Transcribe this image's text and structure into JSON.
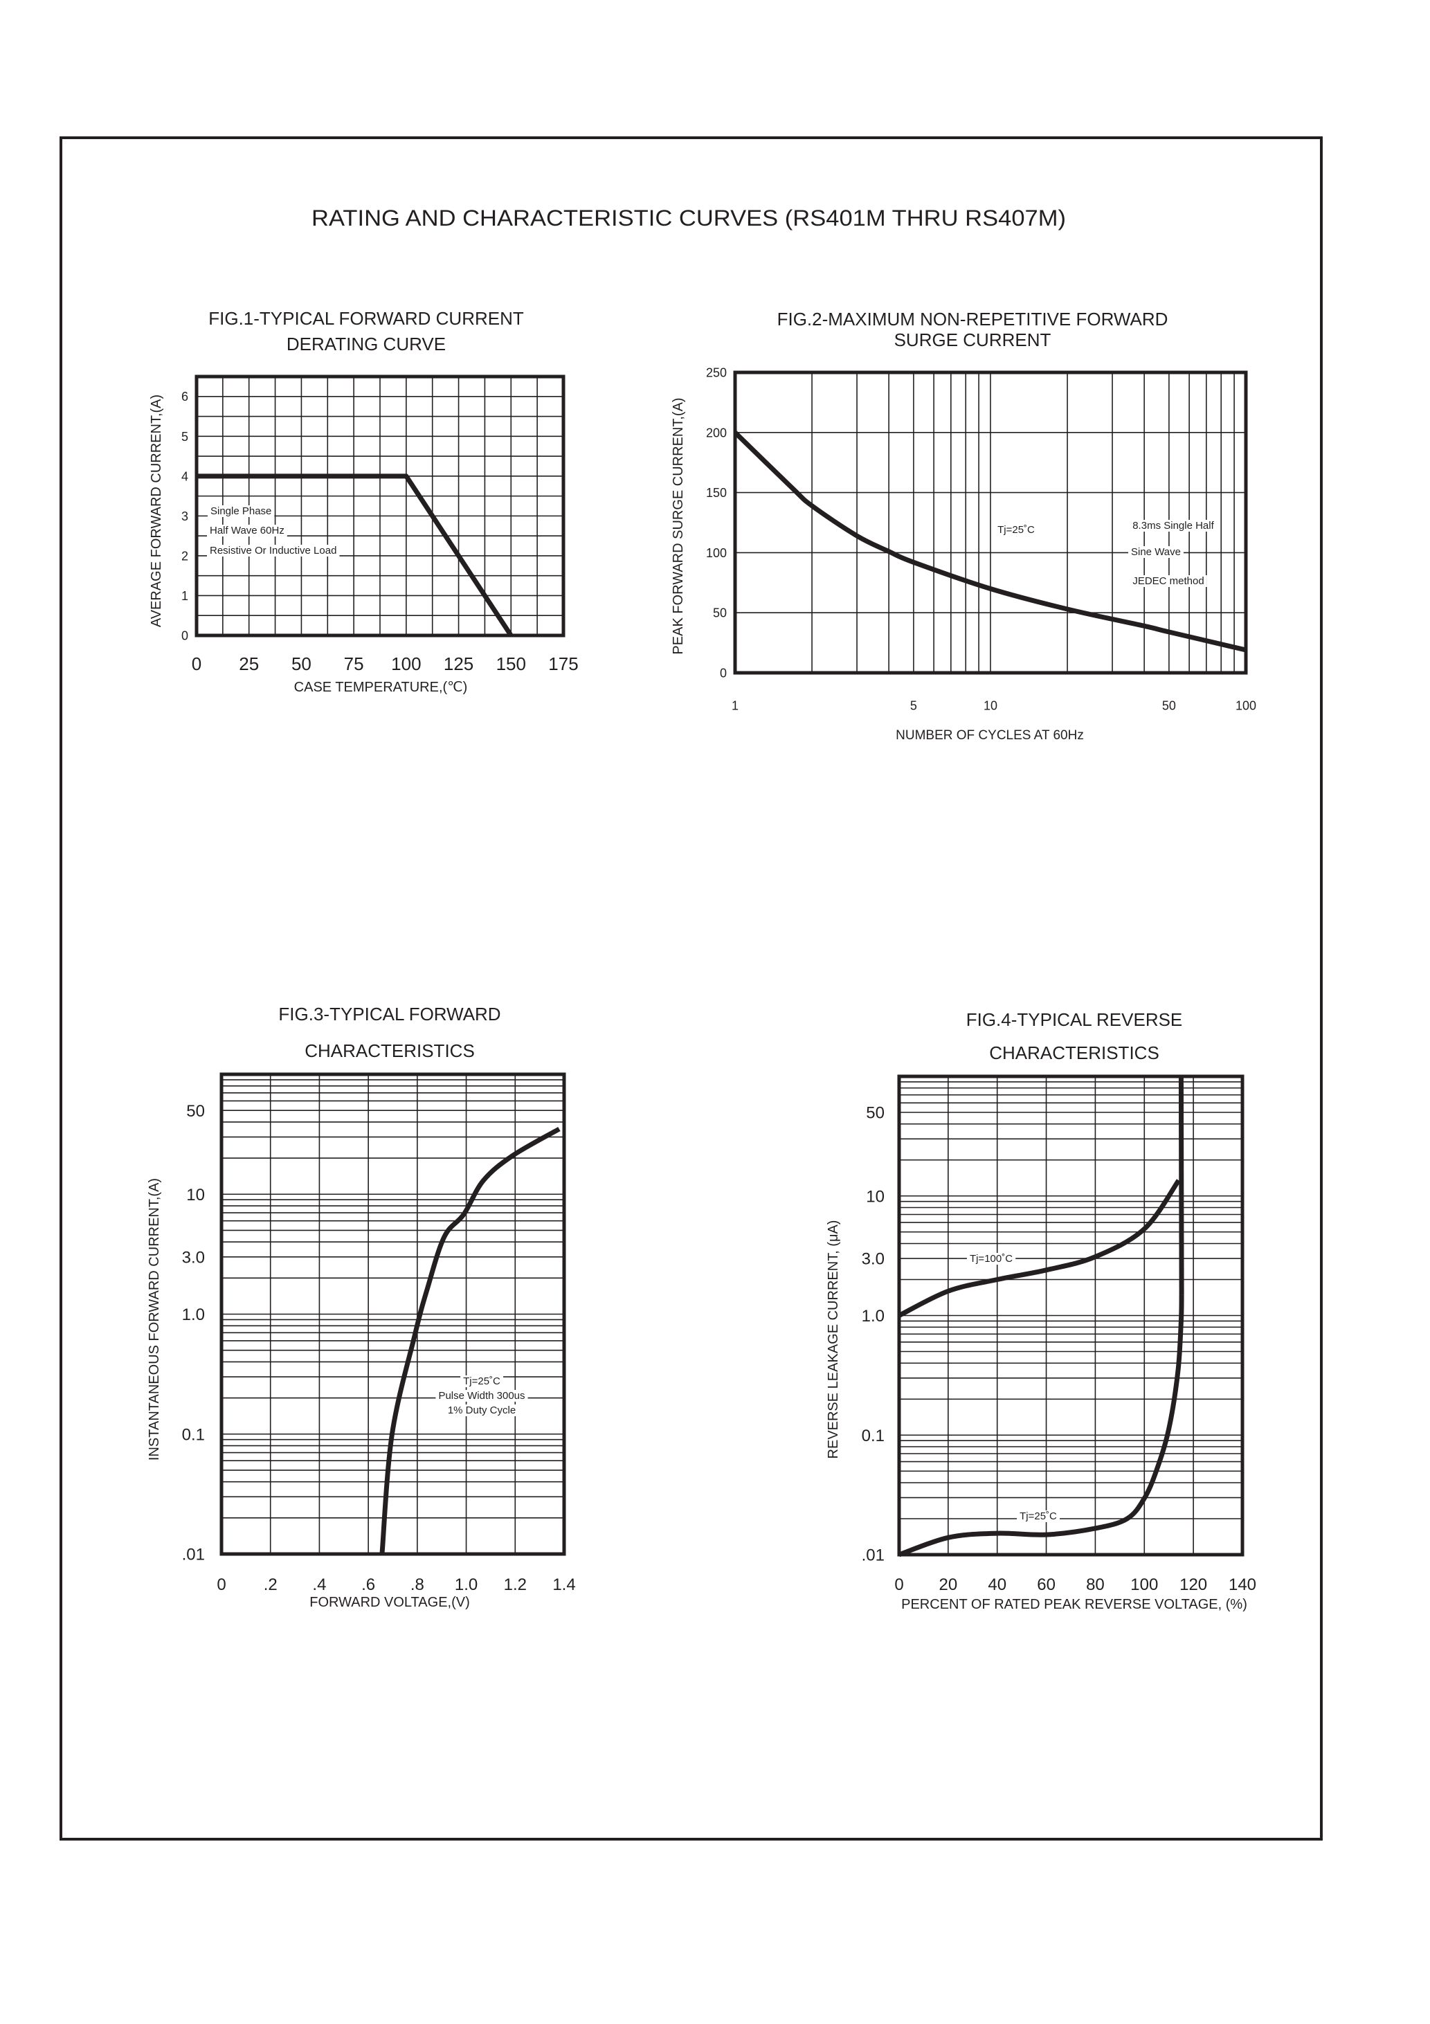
{
  "page_title": "RATING AND CHARACTERISTIC CURVES (RS401M THRU RS407M)",
  "colors": {
    "ink": "#231f20",
    "background": "#ffffff"
  },
  "chart_data": [
    {
      "id": "fig1",
      "type": "line",
      "title": [
        "FIG.1-TYPICAL FORWARD CURRENT",
        "DERATING CURVE"
      ],
      "xlabel": "CASE TEMPERATURE,(℃)",
      "ylabel": "AVERAGE FORWARD CURRENT,(A)",
      "xscale": "linear",
      "yscale": "linear",
      "xlim": [
        0,
        175
      ],
      "ylim": [
        0,
        6.5
      ],
      "grid": true,
      "x_grid_step": 12.5,
      "y_grid_step": 0.5,
      "x_ticks": [
        {
          "v": 0,
          "label": "0"
        },
        {
          "v": 25,
          "label": "25"
        },
        {
          "v": 50,
          "label": "50"
        },
        {
          "v": 75,
          "label": "75"
        },
        {
          "v": 100,
          "label": "100"
        },
        {
          "v": 125,
          "label": "125"
        },
        {
          "v": 150,
          "label": "150"
        },
        {
          "v": 175,
          "label": "175"
        }
      ],
      "y_ticks": [
        {
          "v": 0,
          "label": "0"
        },
        {
          "v": 1,
          "label": "1"
        },
        {
          "v": 2,
          "label": "2"
        },
        {
          "v": 3,
          "label": "3"
        },
        {
          "v": 4,
          "label": "4"
        },
        {
          "v": 5,
          "label": "5"
        },
        {
          "v": 6,
          "label": "6"
        }
      ],
      "series": [
        {
          "smooth": false,
          "points": [
            [
              0,
              4
            ],
            [
              100,
              4
            ],
            [
              150,
              0
            ]
          ]
        }
      ],
      "annotations": [
        "Single Phase",
        "Half Wave 60Hz",
        "Resistive Or Inductive Load"
      ]
    },
    {
      "id": "fig2",
      "type": "line",
      "title": [
        "FIG.2-MAXIMUM NON-REPETITIVE FORWARD",
        "SURGE CURRENT"
      ],
      "xlabel": "NUMBER OF CYCLES AT 60Hz",
      "ylabel": "PEAK FORWARD SURGE CURRENT,(A)",
      "xscale": "log",
      "yscale": "linear",
      "xlim": [
        1,
        100
      ],
      "ylim": [
        0,
        250
      ],
      "grid": true,
      "x_grid": [
        1,
        2,
        3,
        4,
        5,
        6,
        7,
        8,
        9,
        10,
        20,
        30,
        40,
        50,
        60,
        70,
        80,
        90,
        100
      ],
      "y_grid": [
        0,
        50,
        100,
        150,
        200,
        250
      ],
      "x_ticks": [
        {
          "v": 1,
          "label": "1"
        },
        {
          "v": 5,
          "label": "5"
        },
        {
          "v": 10,
          "label": "10"
        },
        {
          "v": 50,
          "label": "50"
        },
        {
          "v": 100,
          "label": "100"
        }
      ],
      "y_ticks": [
        {
          "v": 0,
          "label": "0"
        },
        {
          "v": 50,
          "label": "50"
        },
        {
          "v": 100,
          "label": "100"
        },
        {
          "v": 150,
          "label": "150"
        },
        {
          "v": 200,
          "label": "200"
        },
        {
          "v": 250,
          "label": "250"
        }
      ],
      "series": [
        {
          "smooth": true,
          "points": [
            [
              1,
              200
            ],
            [
              1.67,
              154
            ],
            [
              2,
              139
            ],
            [
              3,
              114
            ],
            [
              4,
              101
            ],
            [
              5,
              92
            ],
            [
              10,
              70
            ],
            [
              20,
              53
            ],
            [
              40,
              39
            ],
            [
              50,
              34
            ],
            [
              100,
              19
            ]
          ]
        }
      ],
      "annotations": [
        "Tj=25˚C",
        "8.3ms Single Half",
        "Sine Wave",
        "JEDEC method"
      ]
    },
    {
      "id": "fig3",
      "type": "line",
      "title": [
        "FIG.3-TYPICAL FORWARD",
        "CHARACTERISTICS"
      ],
      "xlabel": "FORWARD VOLTAGE,(V)",
      "ylabel": "INSTANTANEOUS FORWARD CURRENT,(A)",
      "xscale": "linear",
      "yscale": "log",
      "xlim": [
        0,
        1.4
      ],
      "ylim": [
        0.01,
        100
      ],
      "grid": true,
      "x_grid_step": 0.2,
      "y_grid": "log-minor",
      "x_ticks": [
        {
          "v": 0,
          "label": "0"
        },
        {
          "v": 0.2,
          "label": ".2"
        },
        {
          "v": 0.4,
          "label": ".4"
        },
        {
          "v": 0.6,
          "label": ".6"
        },
        {
          "v": 0.8,
          "label": ".8"
        },
        {
          "v": 1.0,
          "label": "1.0"
        },
        {
          "v": 1.2,
          "label": "1.2"
        },
        {
          "v": 1.4,
          "label": "1.4"
        }
      ],
      "y_ticks": [
        {
          "v": 0.01,
          "label": ".01"
        },
        {
          "v": 0.1,
          "label": "0.1"
        },
        {
          "v": 1,
          "label": "1.0"
        },
        {
          "v": 3,
          "label": "3.0"
        },
        {
          "v": 10,
          "label": "10"
        },
        {
          "v": 50,
          "label": "50"
        }
      ],
      "series": [
        {
          "smooth": true,
          "points": [
            [
              0.656,
              0.01
            ],
            [
              0.697,
              0.1
            ],
            [
              0.79,
              0.67
            ],
            [
              0.84,
              1.6
            ],
            [
              0.91,
              4.4
            ],
            [
              0.99,
              6.8
            ],
            [
              1.07,
              13
            ],
            [
              1.19,
              21
            ],
            [
              1.38,
              35
            ]
          ]
        }
      ],
      "annotations": [
        "Tj=25˚C",
        "Pulse Width 300us",
        "1% Duty Cycle"
      ]
    },
    {
      "id": "fig4",
      "type": "line",
      "title": [
        "FIG.4-TYPICAL REVERSE",
        "CHARACTERISTICS"
      ],
      "xlabel": "PERCENT OF RATED PEAK REVERSE VOLTAGE, (%)",
      "ylabel": "REVERSE LEAKAGE CURRENT, (μA)",
      "xscale": "linear",
      "yscale": "log",
      "xlim": [
        0,
        140
      ],
      "ylim": [
        0.01,
        100
      ],
      "grid": true,
      "x_grid": [
        0,
        20,
        40,
        60,
        80,
        100,
        120,
        140
      ],
      "y_grid": "log-minor",
      "x_ticks": [
        {
          "v": 0,
          "label": "0"
        },
        {
          "v": 20,
          "label": "20"
        },
        {
          "v": 40,
          "label": "40"
        },
        {
          "v": 60,
          "label": "60"
        },
        {
          "v": 80,
          "label": "80"
        },
        {
          "v": 100,
          "label": "100"
        },
        {
          "v": 120,
          "label": "120"
        },
        {
          "v": 140,
          "label": "140"
        }
      ],
      "y_ticks": [
        {
          "v": 0.01,
          "label": ".01"
        },
        {
          "v": 0.1,
          "label": "0.1"
        },
        {
          "v": 1,
          "label": "1.0"
        },
        {
          "v": 3,
          "label": "3.0"
        },
        {
          "v": 10,
          "label": "10"
        },
        {
          "v": 50,
          "label": "50"
        }
      ],
      "series": [
        {
          "name": "Tj=100˚C",
          "smooth": true,
          "points": [
            [
              0,
              1.0
            ],
            [
              20,
              1.6
            ],
            [
              40,
              2.0
            ],
            [
              60,
              2.4
            ],
            [
              80,
              3.1
            ],
            [
              100,
              5.3
            ],
            [
              114,
              13.5
            ]
          ]
        },
        {
          "name": "Tj=25˚C",
          "smooth": true,
          "points": [
            [
              0,
              0.01
            ],
            [
              20,
              0.0139
            ],
            [
              40,
              0.0151
            ],
            [
              60,
              0.0147
            ],
            [
              80,
              0.0166
            ],
            [
              93,
              0.02
            ],
            [
              100,
              0.0296
            ],
            [
              105,
              0.051
            ],
            [
              110,
              0.113
            ],
            [
              113.7,
              0.34
            ],
            [
              115,
              0.9
            ],
            [
              115.2,
              1.5
            ]
          ]
        },
        {
          "smooth": false,
          "points": [
            [
              115.2,
              1.5
            ],
            [
              115,
              100
            ]
          ]
        }
      ],
      "annotations": [
        "Tj=100˚C",
        "Tj=25˚C"
      ]
    }
  ]
}
